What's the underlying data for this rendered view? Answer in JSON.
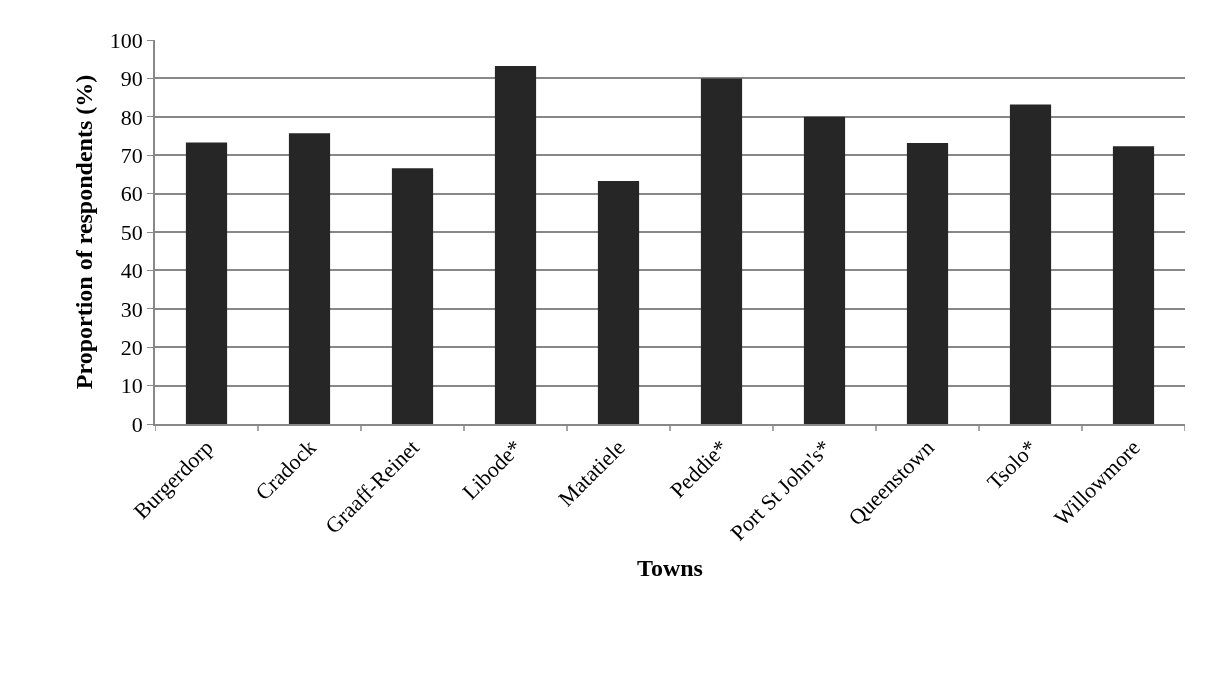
{
  "chart_data": {
    "type": "bar",
    "xlabel": "Towns",
    "ylabel": "Proportion of respondents (%)",
    "categories": [
      "Burgerdorp",
      "Cradock",
      "Graaff-Reinet",
      "Libode*",
      "Matatiele",
      "Peddie*",
      "Port St John's*",
      "Queenstown",
      "Tsolo*",
      "Willowmore"
    ],
    "values": [
      73.3,
      75.7,
      66.6,
      93.2,
      63.3,
      90,
      80,
      73.2,
      83.2,
      72.3
    ],
    "color": "#262626",
    "ylim": [
      0,
      100
    ],
    "yticks": [
      0,
      10,
      20,
      30,
      40,
      50,
      60,
      70,
      80,
      90,
      100
    ],
    "grid": "y"
  }
}
